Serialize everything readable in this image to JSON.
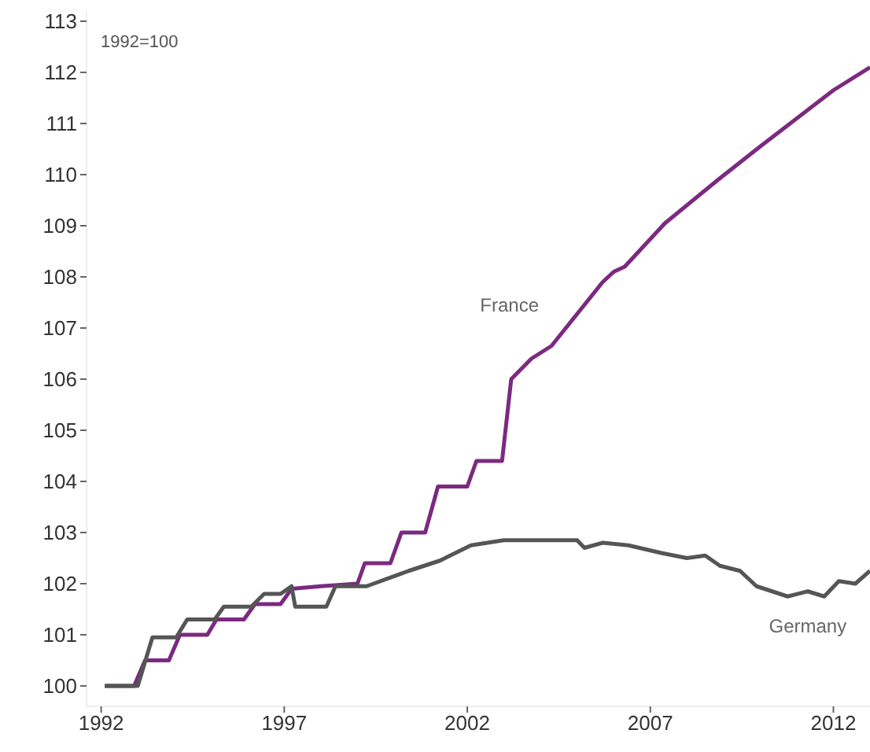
{
  "chart_data": {
    "type": "line",
    "annotations": [
      "1992=100"
    ],
    "xlim": [
      1991.6,
      2013
    ],
    "xticks": [
      1992,
      1997,
      2002,
      2007,
      2012
    ],
    "ylim": [
      99.6,
      113.2
    ],
    "yticks": [
      100,
      101,
      102,
      103,
      104,
      105,
      106,
      107,
      108,
      109,
      110,
      111,
      112,
      113
    ],
    "grid": false,
    "legend": false,
    "marker": "none",
    "line_style": "solid",
    "series": [
      {
        "name": "France",
        "color": "#7b2a80",
        "x": [
          1992.1,
          1992.9,
          1993.2,
          1993.85,
          1994.15,
          1994.9,
          1995.15,
          1995.9,
          1996.2,
          1996.9,
          1997.2,
          1998,
          1999,
          1999.2,
          1999.9,
          2000.2,
          2000.85,
          2001.2,
          2002.0,
          2002.25,
          2002.95,
          2003.2,
          2003.75,
          2004.3,
          2005.7,
          2006.0,
          2006.3,
          2007.4,
          2008.85,
          2010.0,
          2012.0,
          2013.0
        ],
        "values": [
          100,
          100,
          100.5,
          100.5,
          101.0,
          101.0,
          101.3,
          101.3,
          101.6,
          101.6,
          101.9,
          101.95,
          102.0,
          102.4,
          102.4,
          103.0,
          103.0,
          103.9,
          103.9,
          104.4,
          104.4,
          106.0,
          106.4,
          106.65,
          107.9,
          108.1,
          108.2,
          109.05,
          109.9,
          110.55,
          111.65,
          112.1
        ]
      },
      {
        "name": "Germany",
        "color": "#555555",
        "x": [
          1992.1,
          1993.0,
          1993.4,
          1994.05,
          1994.35,
          1995.1,
          1995.35,
          1996.1,
          1996.45,
          1996.9,
          1997.2,
          1997.3,
          1998.15,
          1998.4,
          1999.25,
          2000.4,
          2001.25,
          2002.1,
          2003.0,
          2005.0,
          2005.2,
          2005.7,
          2006.4,
          2007.3,
          2008.0,
          2008.5,
          2008.9,
          2009.45,
          2009.9,
          2010.75,
          2011.3,
          2011.75,
          2012.15,
          2012.6,
          2013.0
        ],
        "values": [
          100,
          100,
          100.95,
          100.95,
          101.3,
          101.3,
          101.55,
          101.55,
          101.8,
          101.8,
          101.95,
          101.55,
          101.55,
          101.95,
          101.95,
          102.25,
          102.45,
          102.75,
          102.85,
          102.85,
          102.7,
          102.8,
          102.75,
          102.6,
          102.5,
          102.55,
          102.35,
          102.25,
          101.95,
          101.75,
          101.85,
          101.75,
          102.05,
          102.0,
          102.25
        ]
      }
    ]
  }
}
